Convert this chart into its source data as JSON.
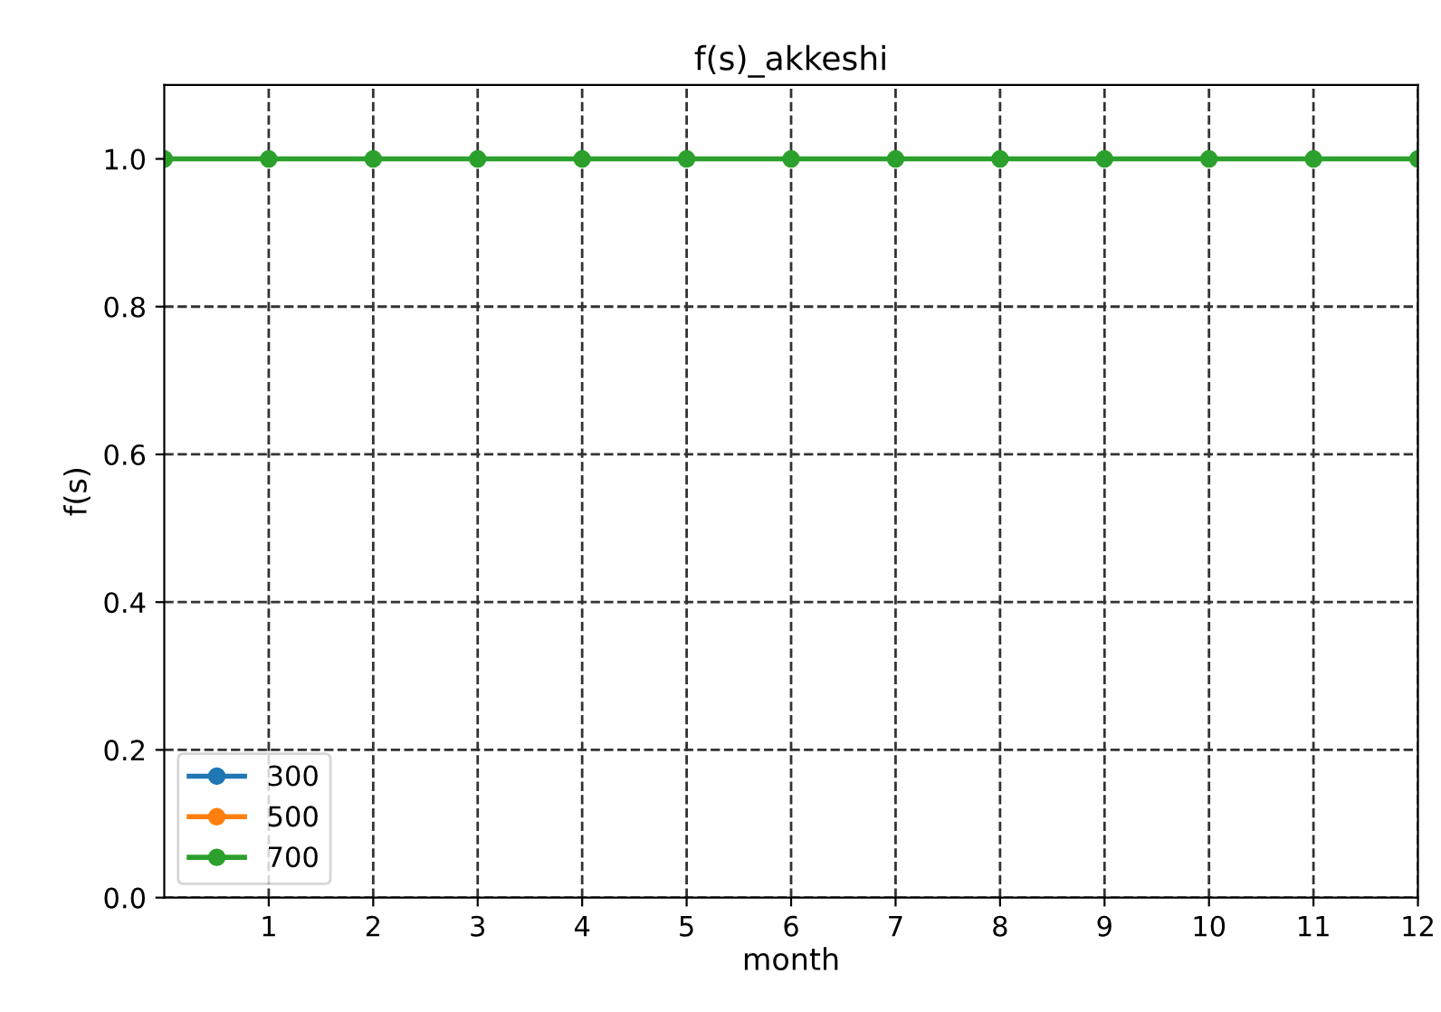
{
  "chart_data": {
    "type": "line",
    "title": "f(s)_akkeshi",
    "xlabel": "month",
    "ylabel": "f(s)",
    "x": [
      0,
      1,
      2,
      3,
      4,
      5,
      6,
      7,
      8,
      9,
      10,
      11,
      12
    ],
    "series": [
      {
        "name": "300",
        "color": "#1f77b4",
        "values": [
          null,
          null,
          null,
          null,
          null,
          null,
          null,
          null,
          null,
          null,
          null,
          null,
          null
        ]
      },
      {
        "name": "500",
        "color": "#ff7f0e",
        "values": [
          null,
          null,
          null,
          null,
          null,
          null,
          null,
          null,
          null,
          null,
          null,
          null,
          null
        ]
      },
      {
        "name": "700",
        "color": "#2ca02c",
        "values": [
          1.0,
          1.0,
          1.0,
          1.0,
          1.0,
          1.0,
          1.0,
          1.0,
          1.0,
          1.0,
          1.0,
          1.0,
          1.0
        ]
      }
    ],
    "xlim": [
      0,
      12
    ],
    "xticks": [
      1,
      2,
      3,
      4,
      5,
      6,
      7,
      8,
      9,
      10,
      11,
      12
    ],
    "ylim": [
      0,
      1.1
    ],
    "yticks": [
      {
        "value": 0,
        "label": "0.0"
      },
      0.2,
      0.4,
      0.6,
      0.8,
      {
        "value": 1,
        "label": "1.0"
      }
    ],
    "grid": true,
    "legend": "bottom left",
    "marker": "circle",
    "line_style": "solid"
  }
}
